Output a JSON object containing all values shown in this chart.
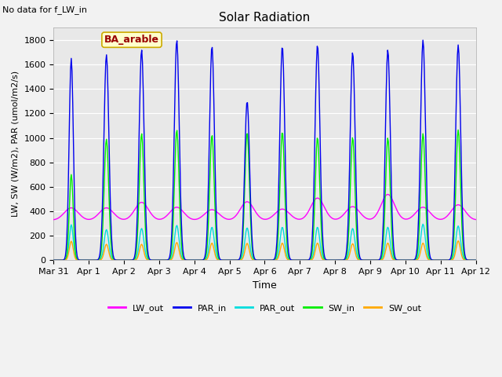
{
  "title": "Solar Radiation",
  "no_data_text": "No data for f_LW_in",
  "ylabel": "LW, SW (W/m2), PAR (umol/m2/s)",
  "xlabel": "Time",
  "legend_label": "BA_arable",
  "legend_bg": "#ffffcc",
  "legend_border": "#ccaa00",
  "legend_text_color": "#990000",
  "fig_bg": "#f2f2f2",
  "plot_bg": "#e8e8e8",
  "ylim": [
    0,
    1900
  ],
  "yticks": [
    0,
    200,
    400,
    600,
    800,
    1000,
    1200,
    1400,
    1600,
    1800
  ],
  "series": {
    "LW_out": {
      "color": "#ff00ff",
      "lw": 1.0
    },
    "PAR_in": {
      "color": "#0000ee",
      "lw": 1.0
    },
    "PAR_out": {
      "color": "#00dddd",
      "lw": 1.0
    },
    "SW_in": {
      "color": "#00ee00",
      "lw": 1.0
    },
    "SW_out": {
      "color": "#ffaa00",
      "lw": 1.0
    }
  },
  "xstart": 0,
  "xend": 12,
  "xtick_labels": [
    "Mar 31",
    "Apr 1",
    "Apr 2",
    "Apr 3",
    "Apr 4",
    "Apr 5",
    "Apr 6",
    "Apr 7",
    "Apr 8",
    "Apr 9",
    "Apr 10",
    "Apr 11",
    "Apr 12"
  ],
  "xtick_positions": [
    0,
    1,
    2,
    3,
    4,
    5,
    6,
    7,
    8,
    9,
    10,
    11,
    12
  ]
}
